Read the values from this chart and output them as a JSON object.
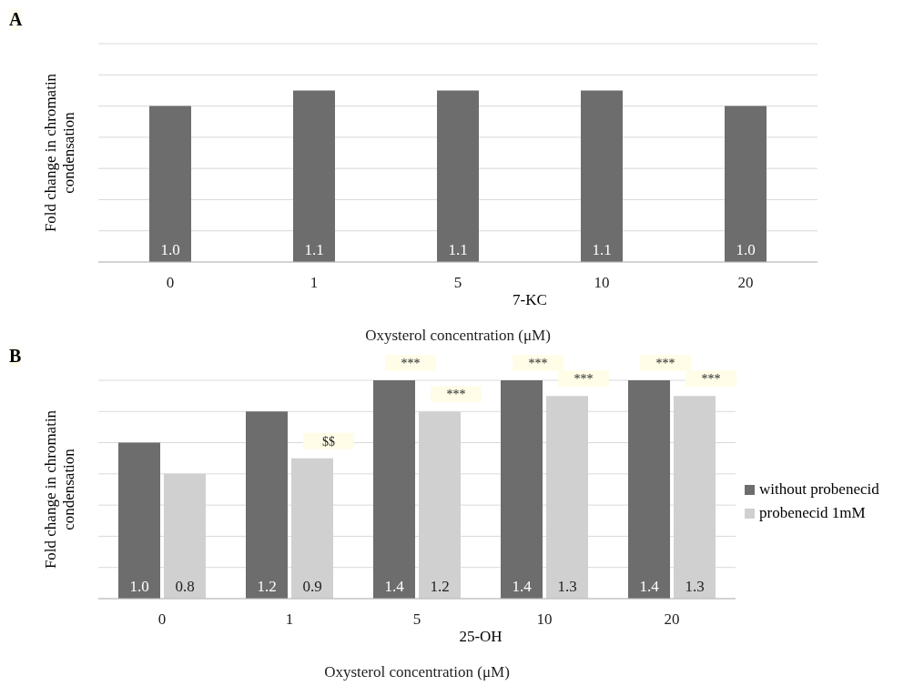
{
  "chart_data": [
    {
      "type": "bar",
      "title": "A",
      "categories": [
        "0",
        "1",
        "5",
        "10",
        "20"
      ],
      "xlabel": "Oxysterol concentration (μM)",
      "ylabel": "Fold change in chromatin condensation",
      "grid": "y",
      "legend": false,
      "series": [
        {
          "color": "#6d6d6d",
          "values": [
            1.0,
            1.1,
            1.1,
            1.1,
            1.0
          ],
          "value_labels": [
            "1.0",
            "1.1",
            "1.1",
            "1.1",
            "1.0"
          ]
        }
      ],
      "annotations": [
        "7-KC"
      ]
    },
    {
      "type": "bar",
      "title": "B",
      "categories": [
        "0",
        "1",
        "5",
        "10",
        "20"
      ],
      "xlabel": "Oxysterol concentration (μM)",
      "ylabel": "Fold change in chromatin condensation",
      "grid": "y",
      "legend": "right",
      "series": [
        {
          "name": "without probenecid",
          "color": "#6d6d6d",
          "values": [
            1.0,
            1.2,
            1.4,
            1.4,
            1.4
          ],
          "value_labels": [
            "1.0",
            "1.2",
            "1.4",
            "1.4",
            "1.4"
          ]
        },
        {
          "name": "probenecid 1mM",
          "color": "#d0d0d0",
          "values": [
            0.8,
            0.9,
            1.2,
            1.3,
            1.3
          ],
          "value_labels": [
            "0.8",
            "0.9",
            "1.2",
            "1.3",
            "1.3"
          ]
        }
      ],
      "annotations": [
        "25-OH",
        {
          "text": "$$",
          "x": "1",
          "y": 0.9
        },
        {
          "text": "***",
          "x": "5",
          "y": 1.4
        },
        {
          "text": "***",
          "x": "5",
          "y": 1.2
        },
        {
          "text": "***",
          "x": "10",
          "y": 1.4
        },
        {
          "text": "***",
          "x": "10",
          "y": 1.3
        },
        {
          "text": "***",
          "x": "20",
          "y": 1.4
        },
        {
          "text": "***",
          "x": "20",
          "y": 1.3
        }
      ]
    }
  ]
}
